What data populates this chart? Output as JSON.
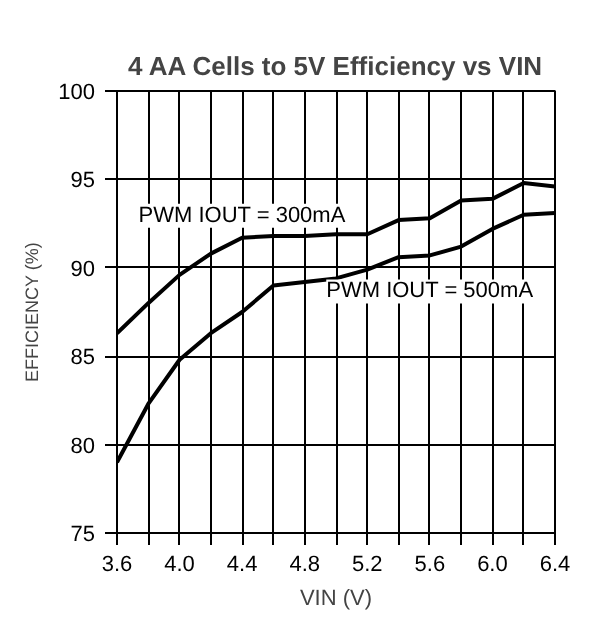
{
  "chart_data": {
    "type": "line",
    "title": "4 AA Cells to 5V Efficiency vs VIN",
    "xlabel": "VIN (V)",
    "ylabel": "EFFICIENCY (%)",
    "x": [
      3.6,
      3.8,
      4.0,
      4.2,
      4.4,
      4.6,
      4.8,
      5.0,
      5.2,
      5.4,
      5.6,
      5.8,
      6.0,
      6.2,
      6.4
    ],
    "series": [
      {
        "name": "PWM IOUT = 300mA",
        "color": "#000000",
        "values": [
          86.3,
          88.0,
          89.6,
          90.8,
          91.7,
          91.8,
          91.8,
          91.9,
          91.9,
          92.7,
          92.8,
          93.8,
          93.9,
          94.8,
          94.6
        ]
      },
      {
        "name": "PWM IOUT = 500mA",
        "color": "#000000",
        "values": [
          79.0,
          82.3,
          84.8,
          86.3,
          87.5,
          89.0,
          89.2,
          89.4,
          89.9,
          90.6,
          90.7,
          91.2,
          92.2,
          93.0,
          93.1
        ]
      }
    ],
    "xlim": [
      3.6,
      6.4
    ],
    "ylim": [
      75,
      100
    ],
    "xticks": [
      3.6,
      {
        "value": 3.8,
        "label": null
      },
      {
        "value": 4,
        "label": "4.0"
      },
      {
        "value": 4.2,
        "label": null
      },
      4.4,
      {
        "value": 4.6,
        "label": null
      },
      4.8,
      {
        "value": 5.0,
        "label": null
      },
      5.2,
      {
        "value": 5.4,
        "label": null
      },
      5.6,
      {
        "value": 5.8,
        "label": null
      },
      {
        "value": 6,
        "label": "6.0"
      },
      {
        "value": 6.2,
        "label": null
      },
      6.4
    ],
    "yticks": [
      75,
      80,
      85,
      90,
      95,
      100
    ],
    "grid": true,
    "marker": "none",
    "line_style": "solid"
  }
}
